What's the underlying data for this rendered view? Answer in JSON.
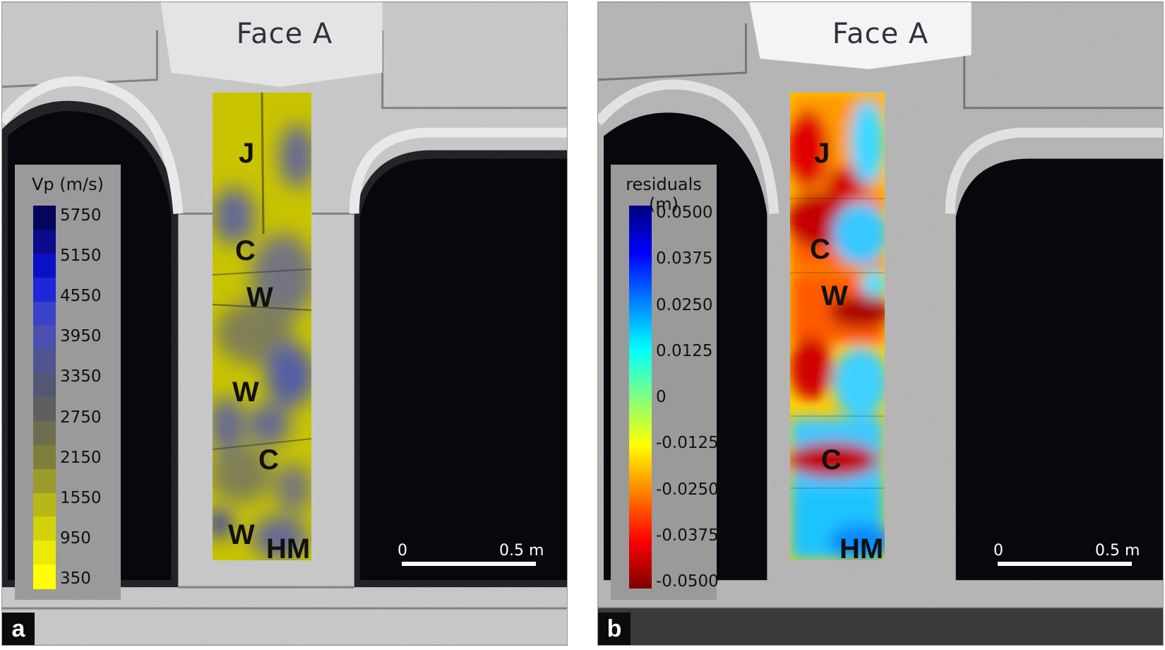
{
  "panel_a": {
    "title": "Face A",
    "panel_letter": "a",
    "legend_title": "Vp (m/s)",
    "legend_labels": [
      "5750",
      "5150",
      "4550",
      "3950",
      "3350",
      "2750",
      "2150",
      "1550",
      "950",
      "350"
    ],
    "legend_colors_top_to_bottom": [
      "#05055c",
      "#0a0a8a",
      "#0b10c7",
      "#1e28d6",
      "#3a42c8",
      "#4a4fb0",
      "#505491",
      "#545772",
      "#5e5f60",
      "#6e6e4e",
      "#7f7e3c",
      "#9b9b2c",
      "#b7b716",
      "#d2d20a",
      "#eaea05",
      "#ffff00"
    ],
    "regions": [
      "J",
      "C",
      "W",
      "W",
      "C",
      "W",
      "HM"
    ],
    "scale": {
      "start": "0",
      "end": "0.5 m"
    }
  },
  "panel_b": {
    "title": "Face A",
    "panel_letter": "b",
    "legend_title": "residuals (m)",
    "legend_labels": [
      "0.0500",
      "0.0375",
      "0.0250",
      "0.0125",
      "0",
      "-0.0125",
      "-0.0250",
      "-0.0375",
      "-0.0500"
    ],
    "legend_colors_top_to_bottom": [
      "#00007f",
      "#0000ff",
      "#0080ff",
      "#00ffff",
      "#80ff80",
      "#ffff00",
      "#ff8000",
      "#ff0000",
      "#7f0000"
    ],
    "regions": [
      "J",
      "C",
      "W",
      "C",
      "HM"
    ],
    "scale": {
      "start": "0",
      "end": "0.5 m"
    }
  }
}
